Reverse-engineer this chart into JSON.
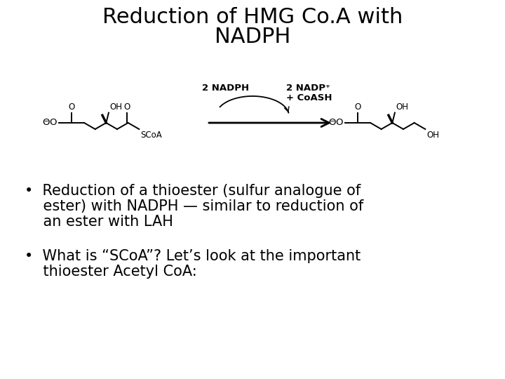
{
  "title_line1": "Reduction of HMG Co.A with",
  "title_line2": "NADPH",
  "title_fontsize": 22,
  "title_color": "#000000",
  "bg_color": "#ffffff",
  "bullet1_line1": "•  Reduction of a thioester (sulfur analogue of",
  "bullet1_line2": "    ester) with NADPH — similar to reduction of",
  "bullet1_line3": "    an ester with LAH",
  "bullet2_line1": "•  What is “SCoA”? Let’s look at the important",
  "bullet2_line2": "    thioester Acetyl CoA:",
  "bullet_fontsize": 15,
  "bullet_color": "#000000",
  "chem_fontsize": 8,
  "arrow_label_left": "2 NADPH",
  "arrow_label_right1": "2 NADP⁺",
  "arrow_label_right2": "+ CoASH"
}
